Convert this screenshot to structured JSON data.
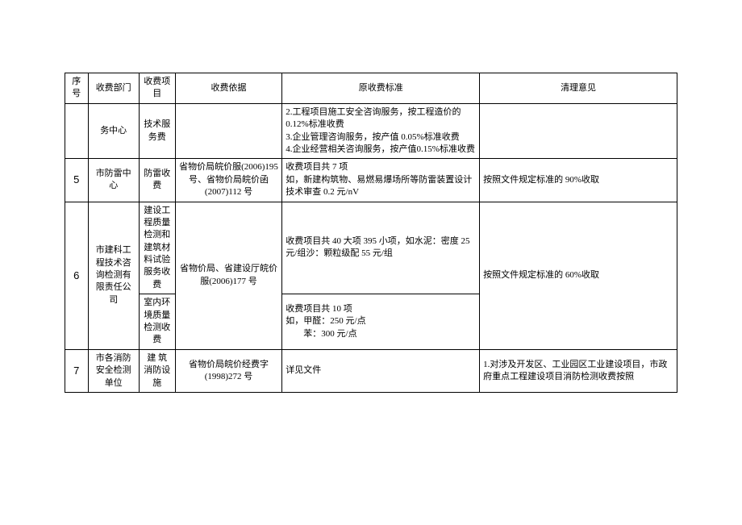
{
  "headers": {
    "num": "序号",
    "dept": "收费部门",
    "item": "收费项目",
    "basis": "收费依据",
    "standard": "原收费标准",
    "opinion": "清理意见"
  },
  "row_continuation": {
    "dept": "务中心",
    "item": "技术服务费",
    "standard": "2.工程项目施工安全咨询服务，按工程造价的 0.12%标准收费\n3.企业管理咨询服务，按产值 0.05%标准收费\n4.企业经营相关咨询服务，按产值0.15%标准收费"
  },
  "row5": {
    "num": "5",
    "dept": "市防雷中心",
    "item": "防雷收费",
    "basis": "省物价局皖价服(2006)195 号、省物价局皖价函(2007)112 号",
    "standard": "收费项目共 7 项\n如，新建构筑物、易燃易爆场所等防雷装置设计技术审查 0.2 元/nV",
    "opinion": "按照文件规定标准的 90%收取"
  },
  "row6": {
    "num": "6",
    "dept": "市建科工程技术咨询检测有限责任公司",
    "item1": "建设工程质量检测和建筑材料试验服务收费",
    "item2": "室内环境质量检测收费",
    "basis": "省物价局、省建设厅皖价服(2006)177 号",
    "standard1": "收费项目共 40 大项 395 小项，如水泥：密度 25 元/组沙：颗粒级配 55 元/组",
    "standard2": "收费项目共 10 项\n如，甲醛：250 元/点\n　　苯：300 元/点",
    "opinion": "按照文件规定标准的 60%收取"
  },
  "row7": {
    "num": "7",
    "dept": "市各消防安全检测单位",
    "item": "建 筑 消防设施",
    "basis": "省物价局皖价经费字(1998)272 号",
    "standard": "详见文件",
    "opinion": "1.对涉及开发区、工业园区工业建设项目，市政府重点工程建设项目消防检测收费按照"
  }
}
